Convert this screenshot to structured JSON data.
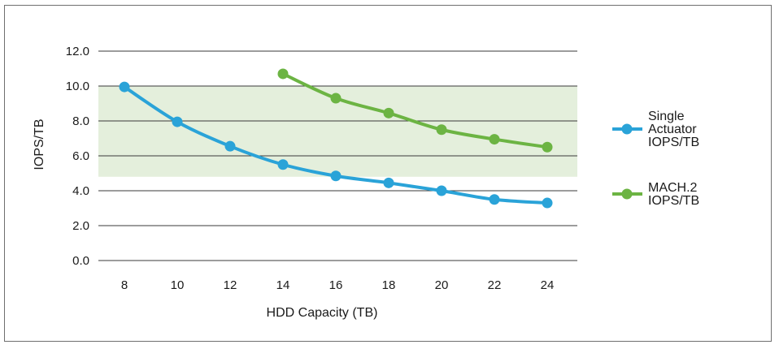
{
  "chart_data": {
    "type": "line",
    "xlabel": "HDD Capacity (TB)",
    "ylabel": "IOPS/TB",
    "categories": [
      "8",
      "10",
      "12",
      "14",
      "16",
      "18",
      "20",
      "22",
      "24"
    ],
    "x": [
      8,
      10,
      12,
      14,
      16,
      18,
      20,
      22,
      24
    ],
    "ylim": [
      0,
      12
    ],
    "yticks": [
      "0.0",
      "2.0",
      "4.0",
      "6.0",
      "8.0",
      "10.0",
      "12.0"
    ],
    "grid": true,
    "highlight_band": {
      "y_from": 4.8,
      "y_to": 10.0,
      "color": "#e4efdc"
    },
    "legend_position": "right",
    "series": [
      {
        "name": "Single Actuator IOPS/TB",
        "legend_lines": [
          "Single",
          "Actuator",
          "IOPS/TB"
        ],
        "color": "#2aa3d8",
        "x": [
          8,
          10,
          12,
          14,
          16,
          18,
          20,
          22,
          24
        ],
        "values": [
          9.95,
          7.95,
          6.55,
          5.5,
          4.85,
          4.45,
          4.0,
          3.5,
          3.3
        ]
      },
      {
        "name": "MACH.2 IOPS/TB",
        "legend_lines": [
          "MACH.2",
          "IOPS/TB"
        ],
        "color": "#6cb443",
        "x": [
          14,
          16,
          18,
          20,
          22,
          24
        ],
        "values": [
          10.7,
          9.3,
          8.45,
          7.5,
          6.95,
          6.5
        ]
      }
    ]
  }
}
